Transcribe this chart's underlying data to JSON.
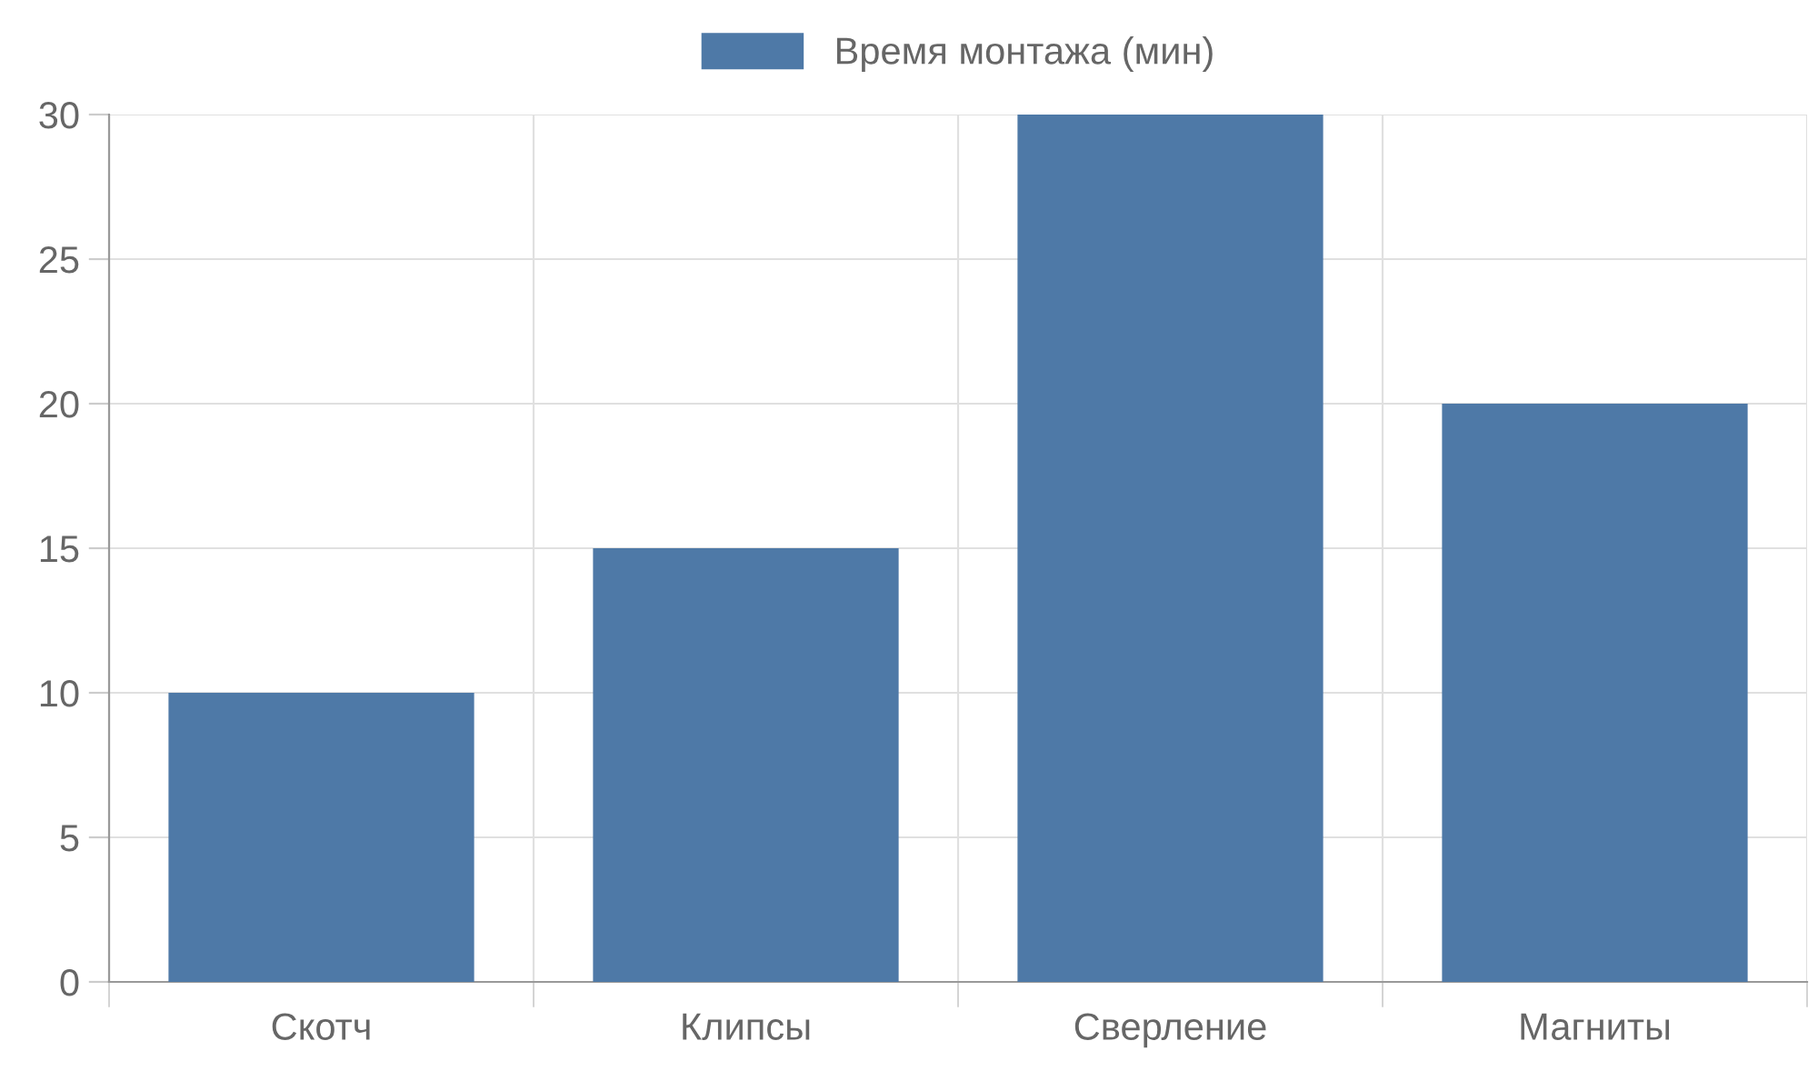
{
  "chart_data": {
    "type": "bar",
    "categories": [
      "Скотч",
      "Клипсы",
      "Сверление",
      "Магниты"
    ],
    "series": [
      {
        "name": "Время монтажа (мин)",
        "color": "#4e79a7",
        "values": [
          10,
          15,
          30,
          20
        ]
      }
    ],
    "ylim": [
      0,
      30
    ],
    "yticks": [
      0,
      5,
      10,
      15,
      20,
      25,
      30
    ],
    "grid": true,
    "legend": "top"
  }
}
